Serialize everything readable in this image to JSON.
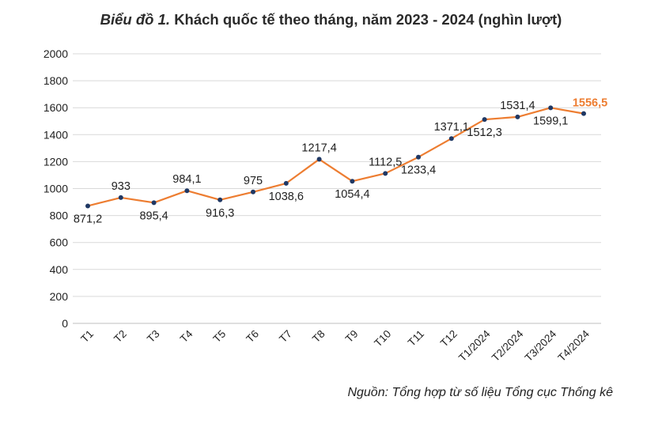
{
  "title_prefix": "Biểu đồ 1.",
  "title_main": "Khách quốc tế theo tháng, năm 2023 - 2024 (nghìn lượt)",
  "source": "Nguồn: Tổng hợp từ số liệu Tổng cục Thống kê",
  "colors": {
    "line": "#ed7d31",
    "marker": "#1f3864",
    "grid": "#d9d9d9",
    "highlight": "#ed7d31"
  },
  "chart_data": {
    "type": "line",
    "title": "Biểu đồ 1. Khách quốc tế theo tháng, năm 2023 - 2024 (nghìn lượt)",
    "xlabel": "",
    "ylabel": "",
    "ylim": [
      0,
      2000
    ],
    "yticks": [
      0,
      200,
      400,
      600,
      800,
      1000,
      1200,
      1400,
      1600,
      1800,
      2000
    ],
    "grid": true,
    "legend": "none",
    "categories": [
      "T1",
      "T2",
      "T3",
      "T4",
      "T5",
      "T6",
      "T7",
      "T8",
      "T9",
      "T10",
      "T11",
      "T12",
      "T1/2024",
      "T2/2024",
      "T3/2024",
      "T4/2024"
    ],
    "values": [
      871.2,
      933,
      895.4,
      984.1,
      916.3,
      975,
      1038.6,
      1217.4,
      1054.4,
      1112.5,
      1233.4,
      1371.1,
      1512.3,
      1531.4,
      1599.1,
      1556.5
    ],
    "data_labels": [
      "871,2",
      "933",
      "895,4",
      "984,1",
      "916,3",
      "975",
      "1038,6",
      "1217,4",
      "1054,4",
      "1112,5",
      "1233,4",
      "1371,1",
      "1512,3",
      "1531,4",
      "1599,1",
      "1556,5"
    ]
  }
}
